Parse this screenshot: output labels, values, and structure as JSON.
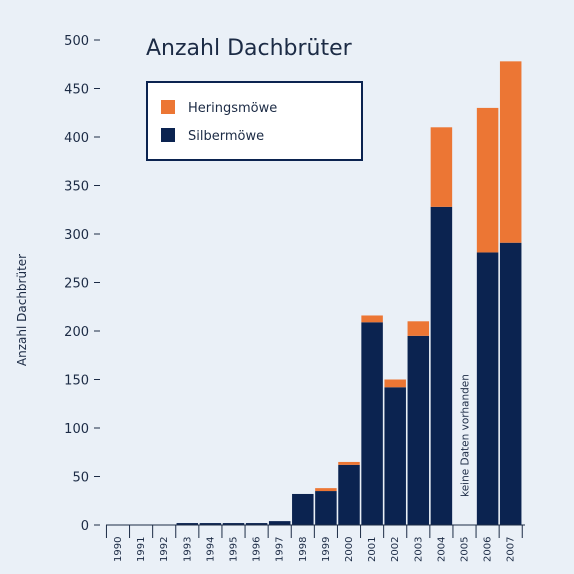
{
  "chart_data": {
    "type": "bar",
    "stacked": true,
    "title": "Anzahl Dachbrüter",
    "ylabel": "Anzahl Dachbrüter",
    "xlabel": "",
    "ylim": [
      0,
      500
    ],
    "yticks": [
      0,
      50,
      100,
      150,
      200,
      250,
      300,
      350,
      400,
      450,
      500
    ],
    "categories": [
      "1990",
      "1991",
      "1992",
      "1993",
      "1994",
      "1995",
      "1996",
      "1997",
      "1998",
      "1999",
      "2000",
      "2001",
      "2002",
      "2003",
      "2004",
      "2005",
      "2006",
      "2007"
    ],
    "series": [
      {
        "name": "Silbermöwe",
        "color": "#0b2350",
        "values": [
          0,
          0,
          0,
          2,
          2,
          2,
          2,
          4,
          32,
          35,
          62,
          209,
          142,
          195,
          328,
          null,
          281,
          291
        ]
      },
      {
        "name": "Heringsmöwe",
        "color": "#ec7634",
        "values": [
          0,
          0,
          0,
          0,
          0,
          0,
          0,
          0,
          0,
          3,
          3,
          7,
          8,
          15,
          82,
          null,
          149,
          187
        ]
      }
    ],
    "legend": {
      "position": "top-left",
      "order": [
        "Heringsmöwe",
        "Silbermöwe"
      ]
    },
    "annotations": [
      {
        "category": "2005",
        "text": "keine Daten vorhanden"
      }
    ],
    "grid": false
  }
}
